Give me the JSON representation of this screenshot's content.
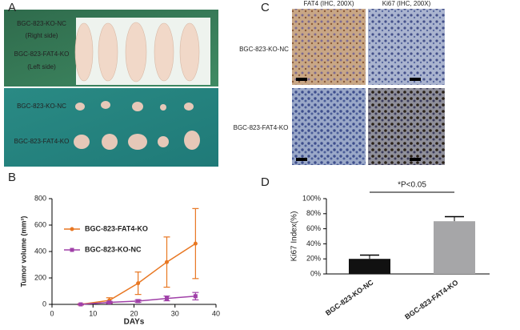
{
  "panels": {
    "a": {
      "letter": "A",
      "labels": [
        "BGC-823-KO-NC",
        "(Right side)",
        "BGC-823-FAT4-KO",
        "(Left side)",
        "BGC-823-KO-NC",
        "BGC-823-FAT4-KO"
      ]
    },
    "c": {
      "letter": "C",
      "headers": [
        "FAT4  (IHC, 200X)",
        "Ki67  (IHC, 200X)"
      ],
      "rows": [
        "BGC-823-KO-NC",
        "BGC-823-FAT4-KO"
      ]
    },
    "b": {
      "letter": "B"
    },
    "d": {
      "letter": "D"
    }
  },
  "chart_data": [
    {
      "type": "line",
      "x_label": "DAYs",
      "y_label": "Tumor volume (mm³)",
      "x": [
        7,
        14,
        21,
        28,
        35
      ],
      "series": [
        {
          "name": "BGC-823-FAT4-KO",
          "color": "#e87722",
          "values": [
            0,
            30,
            160,
            320,
            460
          ],
          "errors": [
            5,
            20,
            85,
            190,
            265
          ]
        },
        {
          "name": "BGC-823-KO-NC",
          "color": "#a040a8",
          "values": [
            0,
            15,
            25,
            45,
            62
          ],
          "errors": [
            3,
            8,
            10,
            18,
            28
          ]
        }
      ],
      "xlim": [
        0,
        40
      ],
      "xticks": [
        0,
        10,
        20,
        30,
        40
      ],
      "ylim": [
        0,
        800
      ],
      "yticks": [
        0,
        200,
        400,
        600,
        800
      ]
    },
    {
      "type": "bar",
      "y_label": "Ki67 Index(%)",
      "annotation": "*P<0.05",
      "categories": [
        "BGC-823-KO-NC",
        "BGC-823-FAT4-KO"
      ],
      "values": [
        20,
        70
      ],
      "errors": [
        5,
        6
      ],
      "colors": [
        "#111111",
        "#a6a6a8"
      ],
      "ylim": [
        0,
        100
      ],
      "yticks": [
        {
          "value": 0,
          "label": "0%"
        },
        {
          "value": 20,
          "label": "20%"
        },
        {
          "value": 40,
          "label": "40%"
        },
        {
          "value": 60,
          "label": "60%"
        },
        {
          "value": 80,
          "label": "80%"
        },
        {
          "value": 100,
          "label": "100%"
        }
      ]
    }
  ]
}
